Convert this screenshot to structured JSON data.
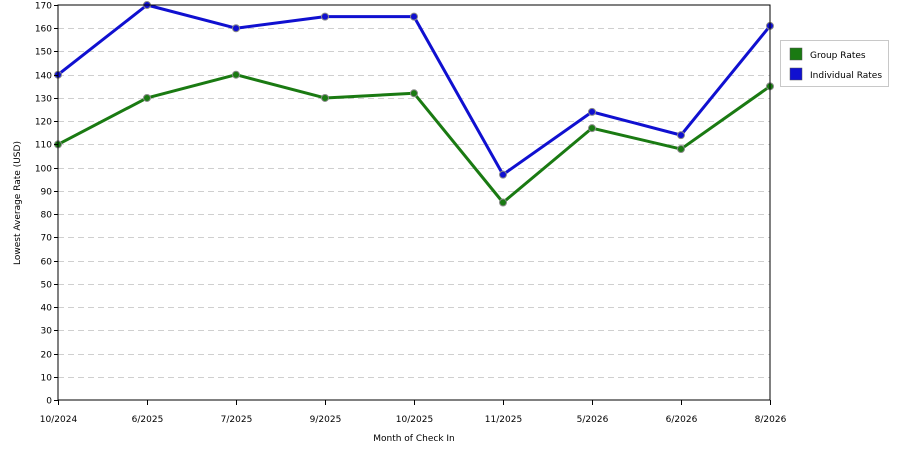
{
  "chart_data": {
    "type": "line",
    "title": "",
    "xlabel": "Month of Check In",
    "ylabel": "Lowest Average Rate (USD)",
    "categories": [
      "10/2024",
      "6/2025",
      "7/2025",
      "9/2025",
      "10/2025",
      "11/2025",
      "5/2026",
      "6/2026",
      "8/2026"
    ],
    "ylim": [
      0,
      170
    ],
    "ytick_step": 10,
    "grid": true,
    "legend_position": "right",
    "series": [
      {
        "name": "Group Rates",
        "color": "#1a7a12",
        "values": [
          110,
          130,
          140,
          130,
          132,
          85,
          117,
          108,
          135
        ]
      },
      {
        "name": "Individual Rates",
        "color": "#1010d0",
        "values": [
          140,
          170,
          160,
          165,
          165,
          97,
          124,
          114,
          161
        ]
      }
    ]
  }
}
